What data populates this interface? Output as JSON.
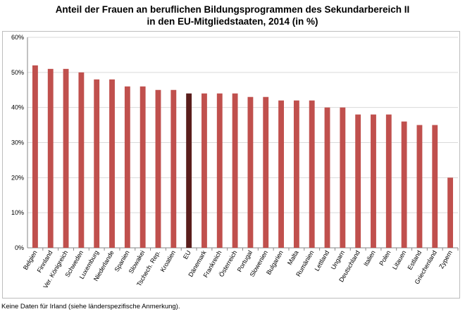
{
  "header": {
    "title_line1": "Anteil der Frauen an beruflichen Bildungsprogrammen des Sekundarbereich II",
    "title_line2": "in den EU-Mitgliedstaaten, 2014 (in %)"
  },
  "footnote": "Keine Daten für Irland (siehe länderspezifische Anmerkung).",
  "colors": {
    "bar": "#c0504d",
    "highlight": "#5a1e1c",
    "grid": "#d9d9d9",
    "axis": "#868686"
  },
  "chart_data": {
    "type": "bar",
    "title": "Anteil der Frauen an beruflichen Bildungsprogrammen des Sekundarbereich II in den EU-Mitgliedstaaten, 2014 (in %)",
    "categories": [
      "Belgien",
      "Finnland",
      "Ver. Königreich",
      "Schweden",
      "Luxemburg",
      "Niederlande",
      "Spanien",
      "Slowakei",
      "Tschech. Rep.",
      "Kroatien",
      "EU",
      "Dänemark",
      "Frankreich",
      "Österreich",
      "Portugal",
      "Slowenien",
      "Bulgarien",
      "Malta",
      "Rumänien",
      "Lettland",
      "Ungarn",
      "Deutschland",
      "Italien",
      "Polen",
      "Litauen",
      "Estland",
      "Griechenland",
      "Zypern"
    ],
    "values": [
      52,
      51,
      51,
      50,
      48,
      48,
      46,
      46,
      45,
      45,
      44,
      44,
      44,
      44,
      43,
      43,
      42,
      42,
      42,
      40,
      40,
      38,
      38,
      38,
      36,
      35,
      35,
      20
    ],
    "highlight_category": "EU",
    "ylim": [
      0,
      60
    ],
    "yticks": [
      0,
      10,
      20,
      30,
      40,
      50,
      60
    ],
    "ytick_labels": [
      "0%",
      "10%",
      "20%",
      "30%",
      "40%",
      "50%",
      "60%"
    ],
    "grid": true,
    "legend": "none"
  }
}
